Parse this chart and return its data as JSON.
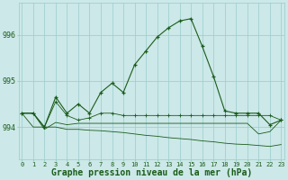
{
  "title": "Graphe pression niveau de la mer (hPa)",
  "bg_color": "#cce8e8",
  "grid_color": "#99cccc",
  "line_color": "#1a5c1a",
  "x": [
    0,
    1,
    2,
    3,
    4,
    5,
    6,
    7,
    8,
    9,
    10,
    11,
    12,
    13,
    14,
    15,
    16,
    17,
    18,
    19,
    20,
    21,
    22,
    23
  ],
  "series1": [
    994.3,
    994.3,
    994.0,
    994.65,
    994.3,
    994.5,
    994.3,
    994.75,
    994.95,
    994.75,
    995.35,
    995.65,
    995.95,
    996.15,
    996.3,
    996.35,
    995.75,
    995.1,
    994.35,
    994.3,
    994.3,
    994.3,
    994.05,
    994.15
  ],
  "series2": [
    994.3,
    994.3,
    994.0,
    994.55,
    994.25,
    994.15,
    994.2,
    994.3,
    994.3,
    994.25,
    994.25,
    994.25,
    994.25,
    994.25,
    994.25,
    994.25,
    994.25,
    994.25,
    994.25,
    994.25,
    994.25,
    994.25,
    994.25,
    994.15
  ],
  "series3": [
    994.3,
    994.0,
    994.0,
    994.0,
    993.95,
    993.95,
    993.93,
    993.92,
    993.9,
    993.88,
    993.85,
    993.82,
    993.8,
    993.77,
    993.75,
    993.73,
    993.7,
    993.68,
    993.65,
    993.63,
    993.62,
    993.6,
    993.58,
    993.62
  ],
  "series4": [
    994.3,
    994.3,
    993.95,
    994.1,
    994.05,
    994.08,
    994.08,
    994.08,
    994.08,
    994.08,
    994.08,
    994.08,
    994.08,
    994.08,
    994.08,
    994.08,
    994.08,
    994.08,
    994.08,
    994.08,
    994.08,
    993.85,
    993.9,
    994.15
  ],
  "ylim": [
    993.3,
    996.7
  ],
  "yticks": [
    994,
    995,
    996
  ],
  "title_fontsize": 7,
  "tick_fontsize": 5,
  "marker_size": 3.5,
  "line_width": 0.8
}
